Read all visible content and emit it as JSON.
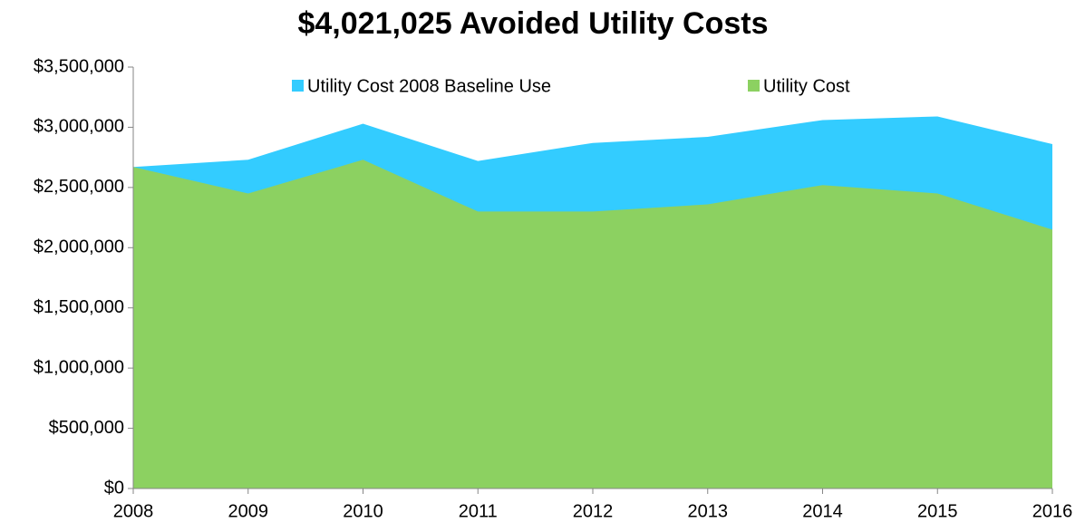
{
  "chart_data": {
    "type": "area",
    "title": "$4,021,025 Avoided Utility Costs",
    "categories": [
      "2008",
      "2009",
      "2010",
      "2011",
      "2012",
      "2013",
      "2014",
      "2015",
      "2016"
    ],
    "series": [
      {
        "name": "Utility Cost 2008 Baseline Use",
        "color": "#33ccff",
        "values": [
          2670000,
          2730000,
          3030000,
          2720000,
          2870000,
          2920000,
          3060000,
          3090000,
          2860000
        ]
      },
      {
        "name": "Utility Cost",
        "color": "#8cd161",
        "values": [
          2670000,
          2450000,
          2730000,
          2300000,
          2300000,
          2360000,
          2520000,
          2450000,
          2150000
        ]
      }
    ],
    "ylim": [
      0,
      3500000
    ],
    "yticks": [
      {
        "value": 0,
        "label": "$0"
      },
      {
        "value": 500000,
        "label": "$500,000"
      },
      {
        "value": 1000000,
        "label": "$1,000,000"
      },
      {
        "value": 1500000,
        "label": "$1,500,000"
      },
      {
        "value": 2000000,
        "label": "$2,000,000"
      },
      {
        "value": 2500000,
        "label": "$2,500,000"
      },
      {
        "value": 3000000,
        "label": "$3,000,000"
      },
      {
        "value": 3500000,
        "label": "$3,500,000"
      }
    ],
    "grid": false,
    "legend": "top"
  }
}
